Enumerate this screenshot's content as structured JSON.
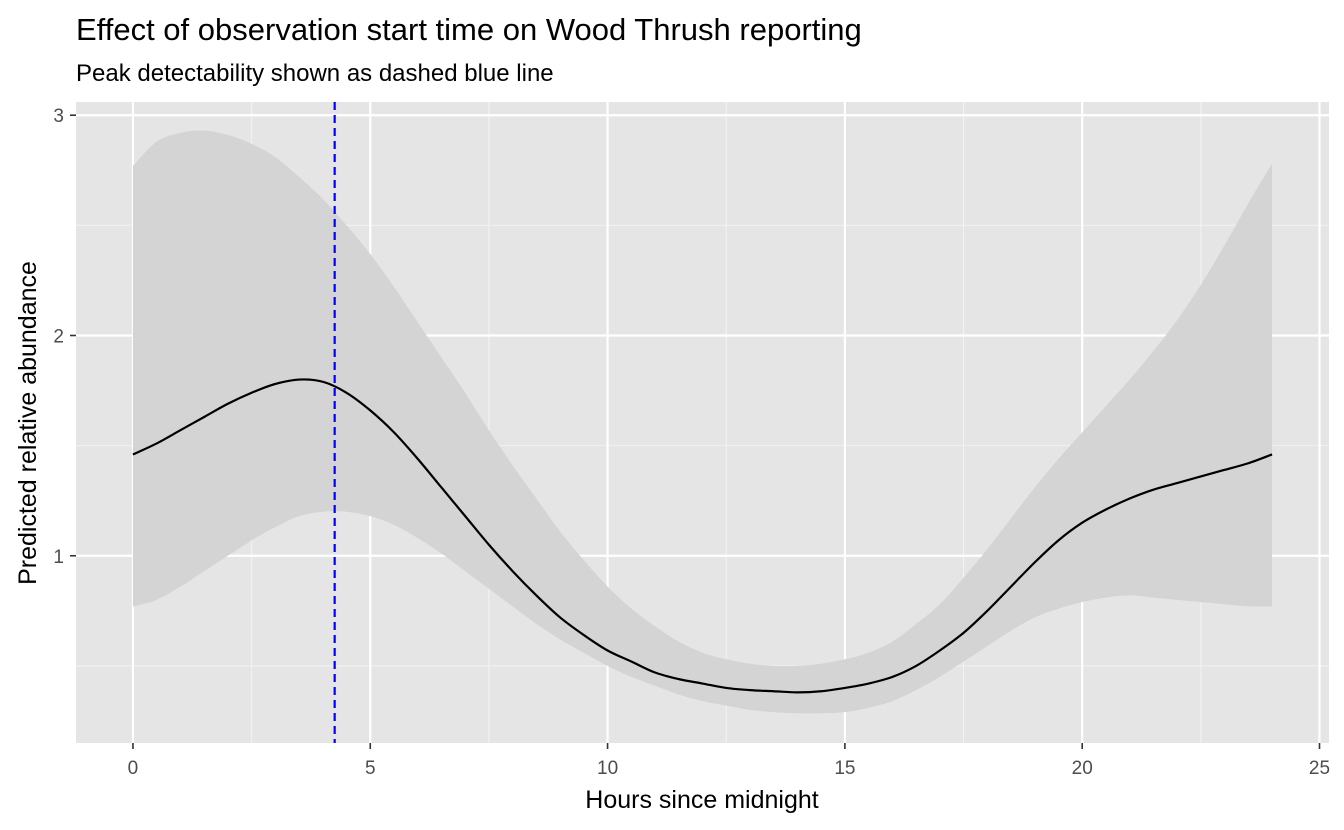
{
  "chart_data": {
    "type": "line",
    "title": "Effect of observation start time on Wood Thrush reporting",
    "subtitle": "Peak detectability shown as dashed blue line",
    "xlabel": "Hours since midnight",
    "ylabel": "Predicted relative abundance",
    "xlim": [
      -1.2,
      25.2
    ],
    "ylim": [
      0.15,
      3.06
    ],
    "x_ticks": [
      0,
      5,
      10,
      15,
      20,
      25
    ],
    "x_tick_labels": [
      "0",
      "5",
      "10",
      "15",
      "20",
      "25"
    ],
    "y_ticks": [
      1,
      2,
      3
    ],
    "y_tick_labels": [
      "1",
      "2",
      "3"
    ],
    "x_minor_ticks": [
      2.5,
      7.5,
      12.5,
      17.5,
      22.5
    ],
    "y_minor_ticks": [
      0.5,
      1.5,
      2.5
    ],
    "grid": true,
    "peak_line": {
      "x": 4.25,
      "color": "#0000ff",
      "style": "dashed"
    },
    "series": [
      {
        "x": [
          0,
          0.5,
          1,
          1.5,
          2,
          2.5,
          3,
          3.5,
          4,
          4.5,
          5,
          5.5,
          6,
          6.5,
          7,
          7.5,
          8,
          8.5,
          9,
          9.5,
          10,
          10.5,
          11,
          11.5,
          12,
          12.5,
          13,
          13.5,
          14,
          14.5,
          15,
          15.5,
          16,
          16.5,
          17,
          17.5,
          18,
          18.5,
          19,
          19.5,
          20,
          20.5,
          21,
          21.5,
          22,
          22.5,
          23,
          23.5,
          24
        ],
        "y": [
          1.46,
          1.51,
          1.57,
          1.63,
          1.69,
          1.74,
          1.78,
          1.8,
          1.79,
          1.74,
          1.66,
          1.56,
          1.44,
          1.31,
          1.18,
          1.05,
          0.93,
          0.82,
          0.72,
          0.64,
          0.57,
          0.52,
          0.47,
          0.44,
          0.42,
          0.4,
          0.39,
          0.385,
          0.38,
          0.385,
          0.4,
          0.42,
          0.45,
          0.5,
          0.57,
          0.65,
          0.75,
          0.86,
          0.97,
          1.07,
          1.15,
          1.21,
          1.26,
          1.3,
          1.33,
          1.36,
          1.39,
          1.42,
          1.46
        ],
        "lower": [
          0.77,
          0.8,
          0.86,
          0.93,
          1.0,
          1.07,
          1.13,
          1.18,
          1.2,
          1.2,
          1.18,
          1.14,
          1.08,
          1.01,
          0.93,
          0.85,
          0.77,
          0.69,
          0.62,
          0.56,
          0.5,
          0.45,
          0.41,
          0.37,
          0.34,
          0.32,
          0.3,
          0.29,
          0.285,
          0.285,
          0.29,
          0.31,
          0.34,
          0.39,
          0.45,
          0.52,
          0.59,
          0.66,
          0.72,
          0.76,
          0.79,
          0.81,
          0.82,
          0.81,
          0.8,
          0.79,
          0.78,
          0.77,
          0.77
        ],
        "upper": [
          2.77,
          2.88,
          2.92,
          2.93,
          2.91,
          2.87,
          2.81,
          2.72,
          2.62,
          2.5,
          2.37,
          2.22,
          2.06,
          1.9,
          1.74,
          1.57,
          1.41,
          1.26,
          1.11,
          0.98,
          0.86,
          0.76,
          0.68,
          0.61,
          0.56,
          0.53,
          0.51,
          0.5,
          0.5,
          0.51,
          0.53,
          0.56,
          0.61,
          0.69,
          0.78,
          0.9,
          1.03,
          1.17,
          1.31,
          1.44,
          1.56,
          1.68,
          1.8,
          1.93,
          2.07,
          2.23,
          2.41,
          2.6,
          2.78
        ]
      }
    ],
    "colors": {
      "panel_background": "#e5e5e5",
      "grid_major": "#ffffff",
      "grid_minor": "#f2f2f2",
      "ribbon": "#d4d4d4",
      "line": "#000000",
      "peak_line": "#0000ff",
      "tick_label": "#4d4d4d",
      "tick_mark": "#333333"
    }
  }
}
